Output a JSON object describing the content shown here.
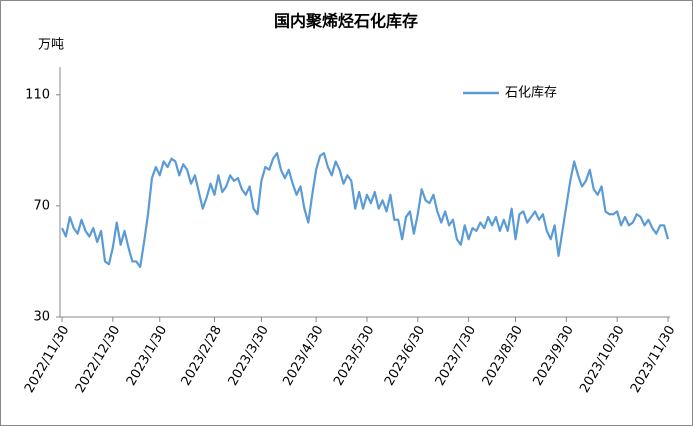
{
  "chart_data": {
    "type": "line",
    "title": "国内聚烯烃石化库存",
    "y_unit": "万吨",
    "categories": [
      "2022/11/30",
      null,
      null,
      null,
      null,
      null,
      null,
      null,
      null,
      null,
      null,
      null,
      null,
      "2022/12/30",
      null,
      null,
      null,
      null,
      null,
      null,
      null,
      null,
      null,
      null,
      null,
      "2023/1/30",
      null,
      null,
      null,
      null,
      null,
      null,
      null,
      null,
      null,
      null,
      null,
      null,
      null,
      "2023/2/28",
      null,
      null,
      null,
      null,
      null,
      null,
      null,
      null,
      null,
      null,
      null,
      "2023/3/30",
      null,
      null,
      null,
      null,
      null,
      null,
      null,
      null,
      null,
      null,
      null,
      null,
      null,
      "2023/4/30",
      null,
      null,
      null,
      null,
      null,
      null,
      null,
      null,
      null,
      null,
      null,
      null,
      "2023/5/30",
      null,
      null,
      null,
      null,
      null,
      null,
      null,
      null,
      null,
      null,
      null,
      null,
      "2023/6/30",
      null,
      null,
      null,
      null,
      null,
      null,
      null,
      null,
      null,
      null,
      null,
      null,
      "2023/7/30",
      null,
      null,
      null,
      null,
      null,
      null,
      null,
      null,
      null,
      null,
      null,
      "2023/8/30",
      null,
      null,
      null,
      null,
      null,
      null,
      null,
      null,
      null,
      null,
      null,
      null,
      "2023/9/30",
      null,
      null,
      null,
      null,
      null,
      null,
      null,
      null,
      null,
      null,
      null,
      null,
      "2023/10/30",
      null,
      null,
      null,
      null,
      null,
      null,
      null,
      null,
      null,
      null,
      null,
      null,
      "2023/11/30"
    ],
    "series": [
      {
        "name": "石化库存",
        "color": "#5b9bd5",
        "values": [
          62,
          59,
          66,
          62,
          60,
          65,
          61,
          59,
          62,
          57,
          61,
          50,
          49,
          55,
          64,
          56,
          61,
          55,
          50,
          50,
          48,
          57,
          67,
          80,
          84,
          81,
          86,
          84,
          87,
          86,
          81,
          85,
          83,
          78,
          81,
          75,
          69,
          73,
          78,
          74,
          81,
          75,
          77,
          81,
          79,
          80,
          76,
          74,
          77,
          69,
          67,
          79,
          84,
          83,
          87,
          89,
          83,
          80,
          83,
          78,
          74,
          77,
          69,
          64,
          74,
          83,
          88,
          89,
          84,
          81,
          86,
          83,
          78,
          81,
          79,
          69,
          75,
          69,
          74,
          71,
          75,
          69,
          72,
          68,
          74,
          65,
          65,
          58,
          66,
          68,
          60,
          67,
          76,
          72,
          71,
          74,
          68,
          64,
          68,
          63,
          65,
          58,
          56,
          63,
          58,
          62,
          61,
          64,
          62,
          66,
          63,
          66,
          61,
          65,
          61,
          69,
          58,
          67,
          68,
          64,
          66,
          68,
          65,
          67,
          61,
          58,
          63,
          52,
          61,
          70,
          79,
          86,
          81,
          77,
          79,
          83,
          76,
          74,
          77,
          68,
          67,
          67,
          68,
          63,
          66,
          63,
          64,
          67,
          66,
          63,
          65,
          62,
          60,
          63,
          63,
          58
        ]
      }
    ],
    "ylim": [
      30,
      120
    ],
    "yticks": [
      30,
      70,
      110
    ],
    "grid": false,
    "legend": "top-right"
  }
}
